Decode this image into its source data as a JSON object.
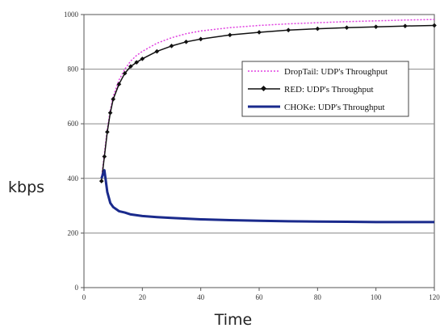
{
  "chart_data": {
    "type": "line",
    "title": "",
    "xlabel": "Time",
    "ylabel": "kbps",
    "xlim": [
      0,
      120
    ],
    "ylim": [
      0,
      1000
    ],
    "x_ticks": [
      "0",
      "20",
      "40",
      "60",
      "80",
      "100",
      "120"
    ],
    "y_ticks": [
      "0",
      "200",
      "400",
      "600",
      "800",
      "1000"
    ],
    "grid": "horizontal",
    "legend_position": "center-right",
    "series": [
      {
        "name": "DropTail: UDP's Throughput",
        "color": "#e040e0",
        "style": "dotted",
        "x": [
          6,
          7,
          8,
          9,
          10,
          12,
          14,
          16,
          18,
          20,
          25,
          30,
          35,
          40,
          50,
          60,
          70,
          80,
          90,
          100,
          110,
          120
        ],
        "y": [
          400,
          490,
          580,
          650,
          700,
          760,
          800,
          830,
          850,
          865,
          895,
          915,
          930,
          940,
          952,
          960,
          966,
          970,
          974,
          977,
          980,
          982
        ]
      },
      {
        "name": "RED: UDP's Throughput",
        "color": "#111111",
        "style": "solid-diamond",
        "x": [
          6,
          7,
          8,
          9,
          10,
          12,
          14,
          16,
          18,
          20,
          25,
          30,
          35,
          40,
          50,
          60,
          70,
          80,
          90,
          100,
          110,
          120
        ],
        "y": [
          390,
          480,
          570,
          640,
          690,
          745,
          785,
          810,
          825,
          838,
          865,
          885,
          900,
          910,
          925,
          935,
          943,
          948,
          952,
          955,
          958,
          960
        ]
      },
      {
        "name": "CHOKe: UDP's Throughput",
        "color": "#1a2a8c",
        "style": "solid-thick",
        "x": [
          6,
          7,
          8,
          9,
          10,
          12,
          14,
          16,
          18,
          20,
          25,
          30,
          40,
          50,
          60,
          70,
          80,
          90,
          100,
          110,
          120
        ],
        "y": [
          400,
          430,
          350,
          310,
          295,
          280,
          275,
          268,
          265,
          262,
          258,
          255,
          250,
          247,
          245,
          243,
          242,
          241,
          240,
          240,
          240
        ]
      }
    ]
  }
}
